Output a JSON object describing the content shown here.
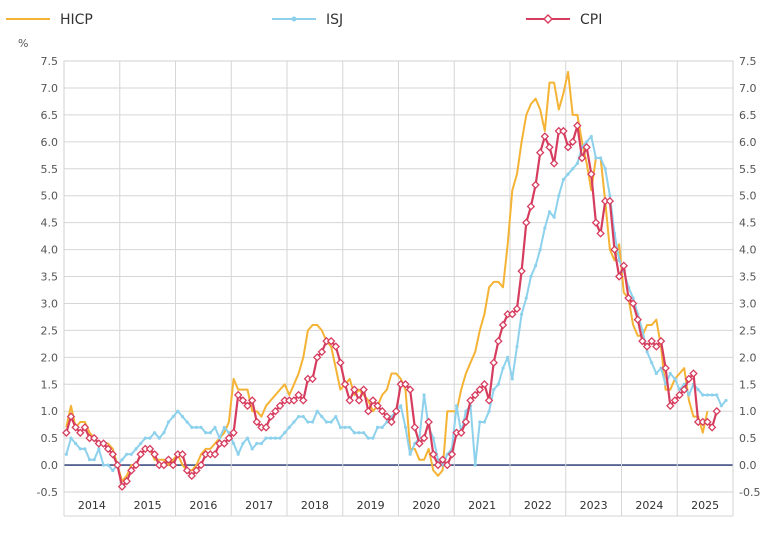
{
  "chart_data": {
    "type": "line",
    "ylabel": "%",
    "ylim": [
      -0.5,
      7.5
    ],
    "yticks": [
      "7.5",
      "7.0",
      "6.5",
      "6.0",
      "5.5",
      "5.0",
      "4.5",
      "4.0",
      "3.5",
      "3.0",
      "2.5",
      "2.0",
      "1.5",
      "1.0",
      "0.5",
      "0.0",
      "-0.5"
    ],
    "year_labels": [
      "2014",
      "2015",
      "2016",
      "2017",
      "2018",
      "2019",
      "2020",
      "2021",
      "2022",
      "2023",
      "2024",
      "2025"
    ],
    "grid": true,
    "legend_position": "top",
    "series": [
      {
        "name": "HICP",
        "color": "#F5B335",
        "values": [
          0.7,
          1.1,
          0.7,
          0.8,
          0.8,
          0.6,
          0.5,
          0.4,
          0.4,
          0.4,
          0.3,
          0.0,
          -0.3,
          -0.2,
          0.0,
          0.0,
          0.2,
          0.3,
          0.3,
          0.1,
          0.1,
          0.1,
          0.0,
          0.1,
          0.2,
          0.0,
          -0.1,
          -0.1,
          0.0,
          0.2,
          0.3,
          0.3,
          0.4,
          0.5,
          0.6,
          0.8,
          1.6,
          1.4,
          1.4,
          1.4,
          1.0,
          1.0,
          0.9,
          1.1,
          1.2,
          1.3,
          1.4,
          1.5,
          1.3,
          1.5,
          1.7,
          2.0,
          2.5,
          2.6,
          2.6,
          2.5,
          2.3,
          2.2,
          1.8,
          1.4,
          1.5,
          1.6,
          1.3,
          1.4,
          1.3,
          1.2,
          1.0,
          1.1,
          1.3,
          1.4,
          1.7,
          1.7,
          1.6,
          1.4,
          0.3,
          0.3,
          0.1,
          0.1,
          0.3,
          -0.1,
          -0.2,
          -0.1,
          1.0,
          1.0,
          1.0,
          1.4,
          1.7,
          1.9,
          2.1,
          2.5,
          2.8,
          3.3,
          3.4,
          3.4,
          3.3,
          4.1,
          5.1,
          5.4,
          6.0,
          6.5,
          6.7,
          6.8,
          6.6,
          6.2,
          7.1,
          7.1,
          6.6,
          6.9,
          7.3,
          6.5,
          6.5,
          6.0,
          5.6,
          5.1,
          5.7,
          5.7,
          4.9,
          4.0,
          3.8,
          4.1,
          3.2,
          3.1,
          2.6,
          2.4,
          2.4,
          2.6,
          2.6,
          2.7,
          2.2,
          1.4,
          1.4,
          1.6,
          1.7,
          1.8,
          1.2,
          0.9,
          0.9,
          0.6,
          1.0
        ]
      },
      {
        "name": "ISJ",
        "color": "#8DD1EC",
        "values": [
          0.2,
          0.5,
          0.4,
          0.3,
          0.3,
          0.1,
          0.1,
          0.3,
          0.0,
          0.0,
          -0.1,
          0.0,
          0.1,
          0.2,
          0.2,
          0.3,
          0.4,
          0.5,
          0.5,
          0.6,
          0.5,
          0.6,
          0.8,
          0.9,
          1.0,
          0.9,
          0.8,
          0.7,
          0.7,
          0.7,
          0.6,
          0.6,
          0.7,
          0.5,
          0.7,
          0.6,
          0.4,
          0.2,
          0.4,
          0.5,
          0.3,
          0.4,
          0.4,
          0.5,
          0.5,
          0.5,
          0.5,
          0.6,
          0.7,
          0.8,
          0.9,
          0.9,
          0.8,
          0.8,
          1.0,
          0.9,
          0.8,
          0.8,
          0.9,
          0.7,
          0.7,
          0.7,
          0.6,
          0.6,
          0.6,
          0.5,
          0.5,
          0.7,
          0.7,
          0.8,
          0.9,
          1.0,
          1.1,
          0.7,
          0.2,
          0.4,
          0.5,
          1.3,
          0.7,
          0.5,
          0.1,
          0.0,
          0.2,
          0.3,
          1.1,
          0.6,
          1.0,
          1.1,
          0.0,
          0.8,
          0.8,
          1.0,
          1.4,
          1.5,
          1.8,
          2.0,
          1.6,
          2.2,
          2.8,
          3.1,
          3.5,
          3.7,
          4.0,
          4.4,
          4.7,
          4.6,
          5.0,
          5.3,
          5.4,
          5.5,
          5.6,
          5.9,
          6.0,
          6.1,
          5.7,
          5.7,
          5.5,
          5.0,
          4.3,
          3.8,
          3.6,
          3.3,
          3.1,
          2.8,
          2.5,
          2.1,
          1.9,
          1.7,
          1.8,
          1.5,
          1.7,
          1.6,
          1.4,
          1.5,
          1.3,
          1.5,
          1.4,
          1.3,
          1.3,
          1.3,
          1.3,
          1.1,
          1.2
        ]
      },
      {
        "name": "CPI",
        "color": "#D63C5E",
        "values": [
          0.6,
          0.9,
          0.7,
          0.6,
          0.7,
          0.5,
          0.5,
          0.4,
          0.4,
          0.3,
          0.2,
          0.0,
          -0.4,
          -0.3,
          -0.1,
          0.0,
          0.2,
          0.3,
          0.3,
          0.2,
          0.0,
          0.0,
          0.1,
          0.0,
          0.2,
          0.2,
          -0.1,
          -0.2,
          -0.1,
          0.0,
          0.2,
          0.2,
          0.2,
          0.4,
          0.4,
          0.5,
          0.6,
          1.3,
          1.2,
          1.1,
          1.2,
          0.8,
          0.7,
          0.7,
          0.9,
          1.0,
          1.1,
          1.2,
          1.2,
          1.2,
          1.3,
          1.2,
          1.6,
          1.6,
          2.0,
          2.1,
          2.3,
          2.3,
          2.2,
          1.9,
          1.5,
          1.2,
          1.4,
          1.2,
          1.4,
          1.0,
          1.2,
          1.1,
          1.0,
          0.9,
          0.8,
          1.0,
          1.5,
          1.5,
          1.4,
          0.7,
          0.4,
          0.5,
          0.8,
          0.2,
          0.0,
          0.1,
          0.0,
          0.2,
          0.6,
          0.6,
          0.8,
          1.2,
          1.3,
          1.4,
          1.5,
          1.2,
          1.9,
          2.3,
          2.6,
          2.8,
          2.8,
          2.9,
          3.6,
          4.5,
          4.8,
          5.2,
          5.8,
          6.1,
          5.9,
          5.6,
          6.2,
          6.2,
          5.9,
          6.0,
          6.3,
          5.7,
          5.9,
          5.4,
          4.5,
          4.3,
          4.9,
          4.9,
          4.0,
          3.5,
          3.7,
          3.1,
          3.0,
          2.7,
          2.3,
          2.2,
          2.3,
          2.2,
          2.3,
          1.8,
          1.1,
          1.2,
          1.3,
          1.4,
          1.6,
          1.7,
          0.8,
          0.8,
          0.8,
          0.7,
          1.0
        ]
      }
    ]
  }
}
